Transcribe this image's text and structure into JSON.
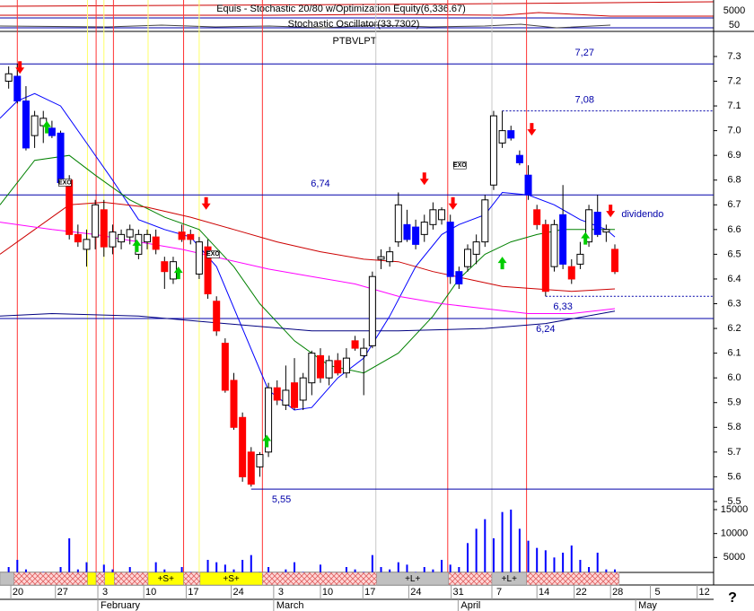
{
  "chart_data": {
    "type": "candlestick",
    "title": "PTBVLPT",
    "indicator_title": "Equis - Stochastic 20/80 w/Optimization Equity(6,336.67)",
    "indicator_subtitle": "Stochastic Oscillator(33.7302)",
    "indicator_yticks": [
      5000,
      50
    ],
    "xlim": [
      -1,
      81.4
    ],
    "xticks": [
      {
        "value": 0.25,
        "label": "20"
      },
      {
        "value": 5.4,
        "label": "27"
      },
      {
        "value": 10.3,
        "label": "3"
      },
      {
        "value": 15.6,
        "label": "10"
      },
      {
        "value": 20.5,
        "label": "17"
      },
      {
        "value": 25.7,
        "label": "24"
      },
      {
        "value": 30.6,
        "label": "3"
      },
      {
        "value": 36,
        "label": "10"
      },
      {
        "value": 40.9,
        "label": "17"
      },
      {
        "value": 46.2,
        "label": "24"
      },
      {
        "value": 51.1,
        "label": "31"
      },
      {
        "value": 55.8,
        "label": "7"
      },
      {
        "value": 61,
        "label": "14"
      },
      {
        "value": 65.3,
        "label": "22"
      },
      {
        "value": 69.5,
        "label": "28"
      },
      {
        "value": 74.1,
        "label": "5"
      },
      {
        "value": 79.5,
        "label": "12"
      }
    ],
    "month_ticks": [
      {
        "value": 10.3,
        "label": "February"
      },
      {
        "value": 30.6,
        "label": "March"
      },
      {
        "value": 51.9,
        "label": "April"
      },
      {
        "value": 72.4,
        "label": "May"
      }
    ],
    "ylim": [
      5.42,
      7.4
    ],
    "yticks": [
      7.3,
      7.2,
      7.1,
      {
        "value": 7,
        "label": "7.0"
      },
      6.9,
      6.8,
      6.7,
      6.6,
      6.5,
      6.4,
      6.3,
      6.2,
      6.1,
      {
        "value": 6,
        "label": "6.0"
      },
      5.9,
      5.8,
      5.7,
      5.6,
      5.5
    ],
    "candles": [
      [
        7.2,
        7.26,
        7.17,
        7.23
      ],
      [
        7.22,
        7.27,
        7.11,
        7.12
      ],
      [
        7.12,
        7.18,
        6.92,
        6.93
      ],
      [
        6.98,
        7.08,
        6.93,
        7.06
      ],
      [
        7.02,
        7.08,
        6.95,
        7.05
      ],
      [
        7.01,
        7.04,
        6.97,
        6.98
      ],
      [
        6.99,
        7.0,
        6.78,
        6.79
      ],
      [
        6.8,
        6.82,
        6.56,
        6.58
      ],
      [
        6.58,
        6.62,
        6.53,
        6.55
      ],
      [
        6.52,
        6.6,
        6.45,
        6.56
      ],
      [
        6.57,
        6.72,
        6.52,
        6.7
      ],
      [
        6.68,
        6.72,
        6.49,
        6.53
      ],
      [
        6.53,
        6.62,
        6.5,
        6.59
      ],
      [
        6.55,
        6.6,
        6.52,
        6.58
      ],
      [
        6.57,
        6.62,
        6.54,
        6.6
      ],
      [
        6.5,
        6.6,
        6.48,
        6.58
      ],
      [
        6.55,
        6.6,
        6.52,
        6.58
      ],
      [
        6.57,
        6.6,
        6.5,
        6.52
      ],
      [
        6.47,
        6.49,
        6.36,
        6.43
      ],
      [
        6.4,
        6.49,
        6.38,
        6.47
      ],
      [
        6.59,
        6.62,
        6.55,
        6.56
      ],
      [
        6.58,
        6.6,
        6.54,
        6.56
      ],
      [
        6.42,
        6.57,
        6.4,
        6.55
      ],
      [
        6.53,
        6.56,
        6.32,
        6.34
      ],
      [
        6.31,
        6.33,
        6.17,
        6.19
      ],
      [
        6.14,
        6.16,
        5.94,
        5.95
      ],
      [
        5.99,
        6.02,
        5.79,
        5.8
      ],
      [
        5.84,
        5.86,
        5.58,
        5.6
      ],
      [
        5.7,
        5.72,
        5.56,
        5.57
      ],
      [
        5.64,
        5.7,
        5.6,
        5.69
      ],
      [
        5.7,
        5.98,
        5.68,
        5.96
      ],
      [
        5.96,
        5.99,
        5.89,
        5.91
      ],
      [
        5.89,
        6.05,
        5.87,
        5.95
      ],
      [
        5.98,
        6.08,
        5.87,
        5.88
      ],
      [
        5.91,
        6.02,
        5.87,
        6.0
      ],
      [
        5.98,
        6.11,
        5.93,
        6.1
      ],
      [
        6.09,
        6.12,
        5.98,
        6.0
      ],
      [
        6.0,
        6.09,
        5.97,
        6.07
      ],
      [
        6.07,
        6.1,
        6.01,
        6.02
      ],
      [
        6.02,
        6.12,
        6.0,
        6.08
      ],
      [
        6.15,
        6.17,
        6.11,
        6.12
      ],
      [
        6.09,
        6.16,
        5.93,
        6.12
      ],
      [
        6.13,
        6.43,
        6.12,
        6.41
      ],
      [
        6.48,
        6.52,
        6.44,
        6.49
      ],
      [
        6.47,
        6.53,
        6.45,
        6.51
      ],
      [
        6.55,
        6.75,
        6.53,
        6.7
      ],
      [
        6.62,
        6.68,
        6.55,
        6.56
      ],
      [
        6.61,
        6.64,
        6.52,
        6.54
      ],
      [
        6.58,
        6.66,
        6.55,
        6.63
      ],
      [
        6.62,
        6.71,
        6.6,
        6.68
      ],
      [
        6.64,
        6.69,
        6.62,
        6.68
      ],
      [
        6.63,
        6.66,
        6.38,
        6.41
      ],
      [
        6.43,
        6.45,
        6.36,
        6.38
      ],
      [
        6.45,
        6.54,
        6.43,
        6.52
      ],
      [
        6.5,
        6.58,
        6.46,
        6.55
      ],
      [
        6.55,
        6.74,
        6.53,
        6.72
      ],
      [
        6.78,
        7.08,
        6.76,
        7.06
      ],
      [
        6.95,
        7.08,
        6.93,
        7.0
      ],
      [
        7.0,
        7.02,
        6.96,
        6.97
      ],
      [
        6.9,
        6.92,
        6.86,
        6.87
      ],
      [
        6.82,
        6.86,
        6.72,
        6.74
      ],
      [
        6.68,
        6.7,
        6.6,
        6.62
      ],
      [
        6.62,
        6.64,
        6.33,
        6.35
      ],
      [
        6.45,
        6.64,
        6.43,
        6.62
      ],
      [
        6.66,
        6.78,
        6.44,
        6.46
      ],
      [
        6.45,
        6.48,
        6.38,
        6.4
      ],
      [
        6.46,
        6.55,
        6.44,
        6.5
      ],
      [
        6.55,
        6.7,
        6.53,
        6.68
      ],
      [
        6.67,
        6.74,
        6.57,
        6.58
      ],
      [
        6.59,
        6.62,
        6.55,
        6.6
      ],
      [
        6.52,
        6.54,
        6.42,
        6.43
      ]
    ],
    "candle_colors": [
      "#ffffff",
      "#0000ff",
      "#0000ff",
      "#ffffff",
      "#ffffff",
      "#0000ff",
      "#0000ff",
      "#ff0000",
      "#ff0000",
      "#ffffff",
      "#ffffff",
      "#ff0000",
      "#ffffff",
      "#ffffff",
      "#ffffff",
      "#ffffff",
      "#ffffff",
      "#ff0000",
      "#ff0000",
      "#ffffff",
      "#ff0000",
      "#ff0000",
      "#ffffff",
      "#ff0000",
      "#ff0000",
      "#ff0000",
      "#ff0000",
      "#ff0000",
      "#ff0000",
      "#ffffff",
      "#ffffff",
      "#ff0000",
      "#ffffff",
      "#ff0000",
      "#ffffff",
      "#ffffff",
      "#ff0000",
      "#ffffff",
      "#ff0000",
      "#ffffff",
      "#ff0000",
      "#ffffff",
      "#ffffff",
      "#ffffff",
      "#ffffff",
      "#ffffff",
      "#0000ff",
      "#0000ff",
      "#ffffff",
      "#ffffff",
      "#ffffff",
      "#0000ff",
      "#0000ff",
      "#ffffff",
      "#ffffff",
      "#ffffff",
      "#ffffff",
      "#ffffff",
      "#0000ff",
      "#0000ff",
      "#0000ff",
      "#ff0000",
      "#ff0000",
      "#ffffff",
      "#0000ff",
      "#ff0000",
      "#ffffff",
      "#ffffff",
      "#0000ff",
      "#ffffff",
      "#ff0000"
    ],
    "averages": [
      {
        "color": "#0000ff",
        "x": [
          -1,
          1,
          3,
          6,
          9,
          12,
          15,
          18,
          21,
          24,
          27,
          30,
          33,
          35,
          38,
          41,
          44,
          47,
          50,
          52,
          55,
          57,
          60,
          63,
          66,
          69,
          70
        ],
        "values": [
          7.05,
          7.12,
          7.15,
          7.1,
          6.95,
          6.8,
          6.64,
          6.6,
          6.57,
          6.45,
          6.2,
          5.95,
          5.87,
          5.88,
          6.0,
          6.08,
          6.25,
          6.45,
          6.58,
          6.62,
          6.66,
          6.75,
          6.74,
          6.7,
          6.64,
          6.6,
          6.57
        ]
      },
      {
        "color": "#008000",
        "x": [
          -1,
          3,
          7,
          10,
          14,
          18,
          22,
          26,
          29,
          33,
          37,
          41,
          45,
          49,
          52,
          55,
          58,
          61,
          64,
          67,
          70
        ],
        "values": [
          6.7,
          6.88,
          6.9,
          6.82,
          6.72,
          6.65,
          6.6,
          6.45,
          6.3,
          6.15,
          6.05,
          6.02,
          6.1,
          6.25,
          6.4,
          6.5,
          6.55,
          6.58,
          6.6,
          6.6,
          6.6
        ]
      },
      {
        "color": "#cc0000",
        "x": [
          -1,
          3,
          7,
          11,
          16,
          21,
          26,
          31,
          36,
          41,
          45,
          49,
          53,
          57,
          61,
          65,
          70
        ],
        "values": [
          6.5,
          6.6,
          6.7,
          6.71,
          6.69,
          6.65,
          6.6,
          6.55,
          6.51,
          6.48,
          6.47,
          6.43,
          6.4,
          6.37,
          6.36,
          6.35,
          6.36
        ]
      },
      {
        "color": "#ff00ff",
        "x": [
          -1,
          5,
          10,
          15,
          20,
          25,
          30,
          35,
          40,
          45,
          50,
          55,
          60,
          65,
          70
        ],
        "values": [
          6.63,
          6.6,
          6.58,
          6.55,
          6.52,
          6.48,
          6.44,
          6.41,
          6.38,
          6.33,
          6.3,
          6.28,
          6.26,
          6.26,
          6.28
        ]
      },
      {
        "color": "#000080",
        "x": [
          -1,
          5,
          15,
          25,
          35,
          45,
          55,
          62,
          70
        ],
        "values": [
          6.25,
          6.26,
          6.25,
          6.22,
          6.19,
          6.19,
          6.2,
          6.22,
          6.27
        ]
      }
    ],
    "levels": [
      {
        "value": 7.27,
        "label": "7,27"
      },
      {
        "value": 7.08,
        "label": "7,08",
        "from": 57,
        "dashed": true
      },
      {
        "value": 6.74,
        "label": "6,74"
      },
      {
        "value": 6.33,
        "label": "6,33",
        "from": 62,
        "dashed": true
      },
      {
        "value": 6.24,
        "label": "6,24"
      },
      {
        "value": 5.55,
        "label": "5,55",
        "from": 28
      }
    ],
    "vertical_lines": [
      {
        "color": "#ff3333",
        "x": [
          1,
          10.1,
          12.1,
          20.2,
          29.3,
          50.7,
          59.8
        ]
      },
      {
        "color": "#ffff66",
        "x": [
          9.1,
          11,
          16.1,
          22
        ]
      },
      {
        "color": "#c8c8c8",
        "x": [
          42.4,
          55.8
        ]
      }
    ],
    "sell_signals": {
      "color": "#ff0000",
      "x": [
        1.3,
        22.8,
        48,
        51.3,
        60.4,
        69.5
      ],
      "y": [
        7.23,
        6.68,
        6.78,
        6.68,
        6.98,
        6.65
      ]
    },
    "buy_signals": {
      "color": "#00cc00",
      "x": [
        4.4,
        14.8,
        19.6,
        29.8,
        57,
        66.6
      ],
      "y": [
        7.04,
        6.56,
        6.45,
        5.77,
        6.49,
        6.59
      ]
    },
    "annotations": [
      {
        "text": "EXO",
        "x": 6.5,
        "y": 6.79
      },
      {
        "text": "EXO",
        "x": 23.6,
        "y": 6.5
      },
      {
        "text": "EXO",
        "x": 52.1,
        "y": 6.86
      },
      {
        "text": "dividendo",
        "x": 73.2,
        "y": 6.66
      }
    ],
    "volume": {
      "color": "#0000ff",
      "ylim": [
        0,
        16500
      ],
      "yticks": [
        15000,
        10000,
        5000
      ],
      "values": [
        3000,
        4500,
        2500,
        1500,
        2000,
        1500,
        3000,
        9000,
        2500,
        4000,
        2000,
        3500,
        2500,
        1500,
        3000,
        2000,
        1500,
        4000,
        2500,
        1500,
        3000,
        2000,
        1000,
        4500,
        4000,
        3500,
        2500,
        4500,
        5500,
        2000,
        3000,
        1500,
        2500,
        4000,
        2000,
        1500,
        3500,
        2000,
        1500,
        3000,
        2500,
        2000,
        5500,
        3000,
        2500,
        4000,
        3500,
        2000,
        3000,
        2500,
        4500,
        3500,
        3000,
        8000,
        11000,
        13000,
        9000,
        14500,
        15000,
        11000,
        8500,
        7000,
        6500,
        5000,
        6000,
        7500,
        4500,
        3000,
        6000,
        2500,
        2500
      ]
    },
    "bands": [
      {
        "from": -1,
        "to": 0.6,
        "color": "#c0c0c0"
      },
      {
        "from": 0.6,
        "to": 9.1,
        "color": "#ffd0d0",
        "pattern": "hatch"
      },
      {
        "from": 9.1,
        "to": 10.1,
        "color": "#ffff00"
      },
      {
        "from": 10.1,
        "to": 11.1,
        "color": "#ffd0d0",
        "pattern": "hatch"
      },
      {
        "from": 11.1,
        "to": 12.2,
        "color": "#ffff00"
      },
      {
        "from": 12.2,
        "to": 16.1,
        "color": "#ffd0d0",
        "pattern": "hatch"
      },
      {
        "from": 16.1,
        "to": 20.2,
        "color": "#ffff00",
        "label": "+S+"
      },
      {
        "from": 20.2,
        "to": 22.1,
        "color": "#ffd0d0",
        "pattern": "hatch"
      },
      {
        "from": 22.1,
        "to": 29.3,
        "color": "#ffff00",
        "label": "+S+"
      },
      {
        "from": 29.3,
        "to": 42.5,
        "color": "#ffd0d0",
        "pattern": "hatch"
      },
      {
        "from": 42.5,
        "to": 50.8,
        "color": "#c0c0c0",
        "label": "+L+"
      },
      {
        "from": 50.8,
        "to": 55.8,
        "color": "#ffd0d0",
        "pattern": "hatch"
      },
      {
        "from": 55.8,
        "to": 59.8,
        "color": "#c0c0c0",
        "label": "+L+"
      },
      {
        "from": 59.8,
        "to": 70.5,
        "color": "#ffd0d0",
        "pattern": "hatch"
      }
    ],
    "help": "?"
  }
}
